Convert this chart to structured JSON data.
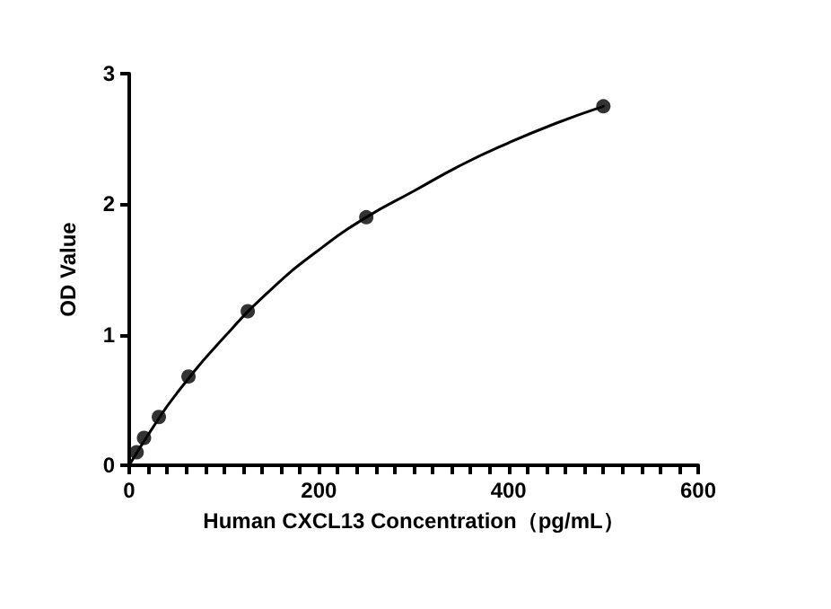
{
  "chart_data": {
    "type": "scatter",
    "xlabel": "Human CXCL13 Concentration（pg/mL）",
    "ylabel": "OD Value",
    "series": [
      {
        "color": "#000000",
        "x": [
          7.8,
          15.6,
          31.25,
          62.5,
          125,
          250,
          500
        ],
        "values": [
          0.1,
          0.21,
          0.37,
          0.68,
          1.18,
          1.9,
          2.75
        ]
      },
      {
        "type": "line",
        "marker": "none",
        "color": "#000000",
        "x": [
          0,
          25,
          50,
          100,
          150,
          200,
          250,
          300,
          350,
          400,
          450,
          500
        ],
        "values": [
          0,
          0.29,
          0.55,
          0.98,
          1.35,
          1.65,
          1.9,
          2.1,
          2.3,
          2.47,
          2.62,
          2.75
        ]
      }
    ],
    "marker": "circle",
    "line_style": "solid",
    "xlim": [
      0,
      600
    ],
    "xticks": [
      0,
      {
        "value": 20,
        "label": null
      },
      {
        "value": 40,
        "label": null
      },
      {
        "value": 60,
        "label": null
      },
      {
        "value": 80,
        "label": null
      },
      {
        "value": 100,
        "label": null
      },
      {
        "value": 120,
        "label": null
      },
      {
        "value": 140,
        "label": null
      },
      {
        "value": 160,
        "label": null
      },
      {
        "value": 180,
        "label": null
      },
      200,
      {
        "value": 220,
        "label": null
      },
      {
        "value": 240,
        "label": null
      },
      {
        "value": 260,
        "label": null
      },
      {
        "value": 280,
        "label": null
      },
      {
        "value": 300,
        "label": null
      },
      {
        "value": 320,
        "label": null
      },
      {
        "value": 340,
        "label": null
      },
      {
        "value": 360,
        "label": null
      },
      {
        "value": 380,
        "label": null
      },
      400,
      {
        "value": 420,
        "label": null
      },
      {
        "value": 440,
        "label": null
      },
      {
        "value": 460,
        "label": null
      },
      {
        "value": 480,
        "label": null
      },
      {
        "value": 500,
        "label": null
      },
      {
        "value": 520,
        "label": null
      },
      {
        "value": 540,
        "label": null
      },
      {
        "value": 560,
        "label": null
      },
      {
        "value": 580,
        "label": null
      },
      600
    ],
    "ylim": [
      0,
      3
    ],
    "yticks": [
      0,
      1,
      2,
      3
    ],
    "grid": false
  }
}
